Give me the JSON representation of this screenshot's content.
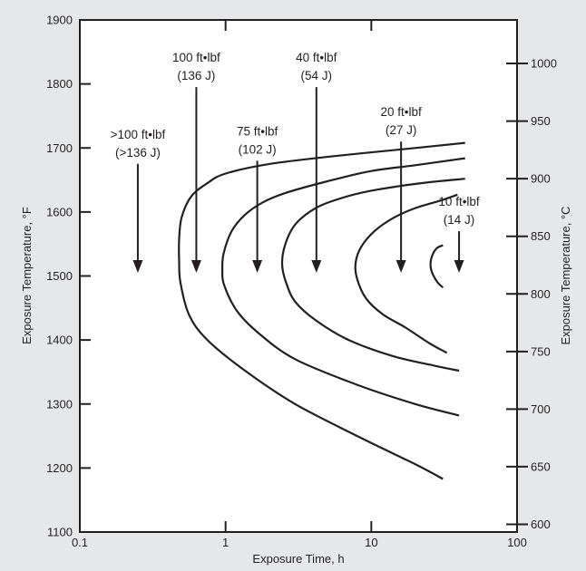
{
  "chart_data": {
    "type": "line",
    "title": "",
    "xlabel": "Exposure Time, h",
    "ylabel": "Exposure Temperature, °F",
    "y2label": "Exposure Temperature, °C",
    "xscale": "log",
    "xlim": [
      0.1,
      100
    ],
    "ylim": [
      1100,
      1900
    ],
    "y2lim": [
      593.3,
      1037.8
    ],
    "grid": false,
    "legend": "none",
    "x_ticks": [
      0.1,
      1,
      10,
      100
    ],
    "x_tick_labels": [
      "0.1",
      "1",
      "10",
      "100"
    ],
    "y_ticks": [
      1100,
      1200,
      1300,
      1400,
      1500,
      1600,
      1700,
      1800,
      1900
    ],
    "y_tick_labels": [
      "1100",
      "1200",
      "1300",
      "1400",
      "1500",
      "1600",
      "1700",
      "1800",
      "1900"
    ],
    "y2_ticks": [
      600,
      650,
      700,
      750,
      800,
      850,
      900,
      950,
      1000
    ],
    "y2_tick_labels": [
      "600",
      "650",
      "700",
      "750",
      "800",
      "850",
      "900",
      "950",
      "1000"
    ],
    "series": [
      {
        "points": [
          [
            44.0,
            1708
          ],
          [
            20.0,
            1700
          ],
          [
            6.0,
            1688
          ],
          [
            2.0,
            1675
          ],
          [
            1.0,
            1660
          ],
          [
            0.75,
            1645
          ],
          [
            0.58,
            1624
          ],
          [
            0.5,
            1592
          ],
          [
            0.48,
            1558
          ],
          [
            0.48,
            1522
          ],
          [
            0.49,
            1490
          ],
          [
            0.56,
            1440
          ],
          [
            0.75,
            1400
          ],
          [
            1.4,
            1350
          ],
          [
            3.0,
            1300
          ],
          [
            8.0,
            1250
          ],
          [
            20.0,
            1206
          ],
          [
            31.0,
            1183
          ]
        ]
      },
      {
        "points": [
          [
            44.0,
            1684
          ],
          [
            20.0,
            1673
          ],
          [
            10.0,
            1664
          ],
          [
            5.0,
            1648
          ],
          [
            2.6,
            1630
          ],
          [
            1.8,
            1615
          ],
          [
            1.35,
            1595
          ],
          [
            1.1,
            1570
          ],
          [
            0.97,
            1535
          ],
          [
            0.95,
            1510
          ],
          [
            0.98,
            1485
          ],
          [
            1.2,
            1445
          ],
          [
            1.7,
            1410
          ],
          [
            3.0,
            1370
          ],
          [
            8.0,
            1330
          ],
          [
            20.0,
            1300
          ],
          [
            40.0,
            1282
          ]
        ]
      },
      {
        "points": [
          [
            44.0,
            1652
          ],
          [
            22.0,
            1645
          ],
          [
            11.0,
            1635
          ],
          [
            7.0,
            1625
          ],
          [
            4.5,
            1610
          ],
          [
            3.3,
            1590
          ],
          [
            2.8,
            1570
          ],
          [
            2.5,
            1540
          ],
          [
            2.45,
            1515
          ],
          [
            2.6,
            1490
          ],
          [
            3.0,
            1460
          ],
          [
            4.2,
            1430
          ],
          [
            7.0,
            1400
          ],
          [
            14.0,
            1375
          ],
          [
            27.0,
            1360
          ],
          [
            40.0,
            1352
          ]
        ]
      },
      {
        "points": [
          [
            39.0,
            1627
          ],
          [
            30.0,
            1618
          ],
          [
            20.0,
            1606
          ],
          [
            14.0,
            1590
          ],
          [
            10.5,
            1570
          ],
          [
            8.5,
            1545
          ],
          [
            7.8,
            1520
          ],
          [
            8.0,
            1495
          ],
          [
            9.2,
            1465
          ],
          [
            12.0,
            1440
          ],
          [
            17.0,
            1420
          ],
          [
            25.0,
            1395
          ],
          [
            33.0,
            1380
          ]
        ]
      },
      {
        "points": [
          [
            31.0,
            1548
          ],
          [
            28.0,
            1543
          ],
          [
            26.0,
            1530
          ],
          [
            25.5,
            1515
          ],
          [
            26.5,
            1502
          ],
          [
            28.5,
            1490
          ],
          [
            31.0,
            1482
          ]
        ]
      }
    ],
    "annotations": [
      {
        "lines": [
          ">100 ft•lbf",
          "(>136 J)"
        ],
        "arrow_x": 0.25,
        "arrow_from": 1675,
        "arrow_to": 1505
      },
      {
        "lines": [
          "100 ft•lbf",
          "(136 J)"
        ],
        "arrow_x": 0.63,
        "arrow_from": 1795,
        "arrow_to": 1505
      },
      {
        "lines": [
          "75 ft•lbf",
          "(102 J)"
        ],
        "arrow_x": 1.65,
        "arrow_from": 1680,
        "arrow_to": 1505
      },
      {
        "lines": [
          "40 ft•lbf",
          "(54 J)"
        ],
        "arrow_x": 4.2,
        "arrow_from": 1795,
        "arrow_to": 1505
      },
      {
        "lines": [
          "20 ft•lbf",
          "(27 J)"
        ],
        "arrow_x": 16.0,
        "arrow_from": 1710,
        "arrow_to": 1505
      },
      {
        "lines": [
          "10 ft•lbf",
          "(14 J)"
        ],
        "arrow_x": 40.0,
        "arrow_from": 1570,
        "arrow_to": 1505
      }
    ]
  }
}
